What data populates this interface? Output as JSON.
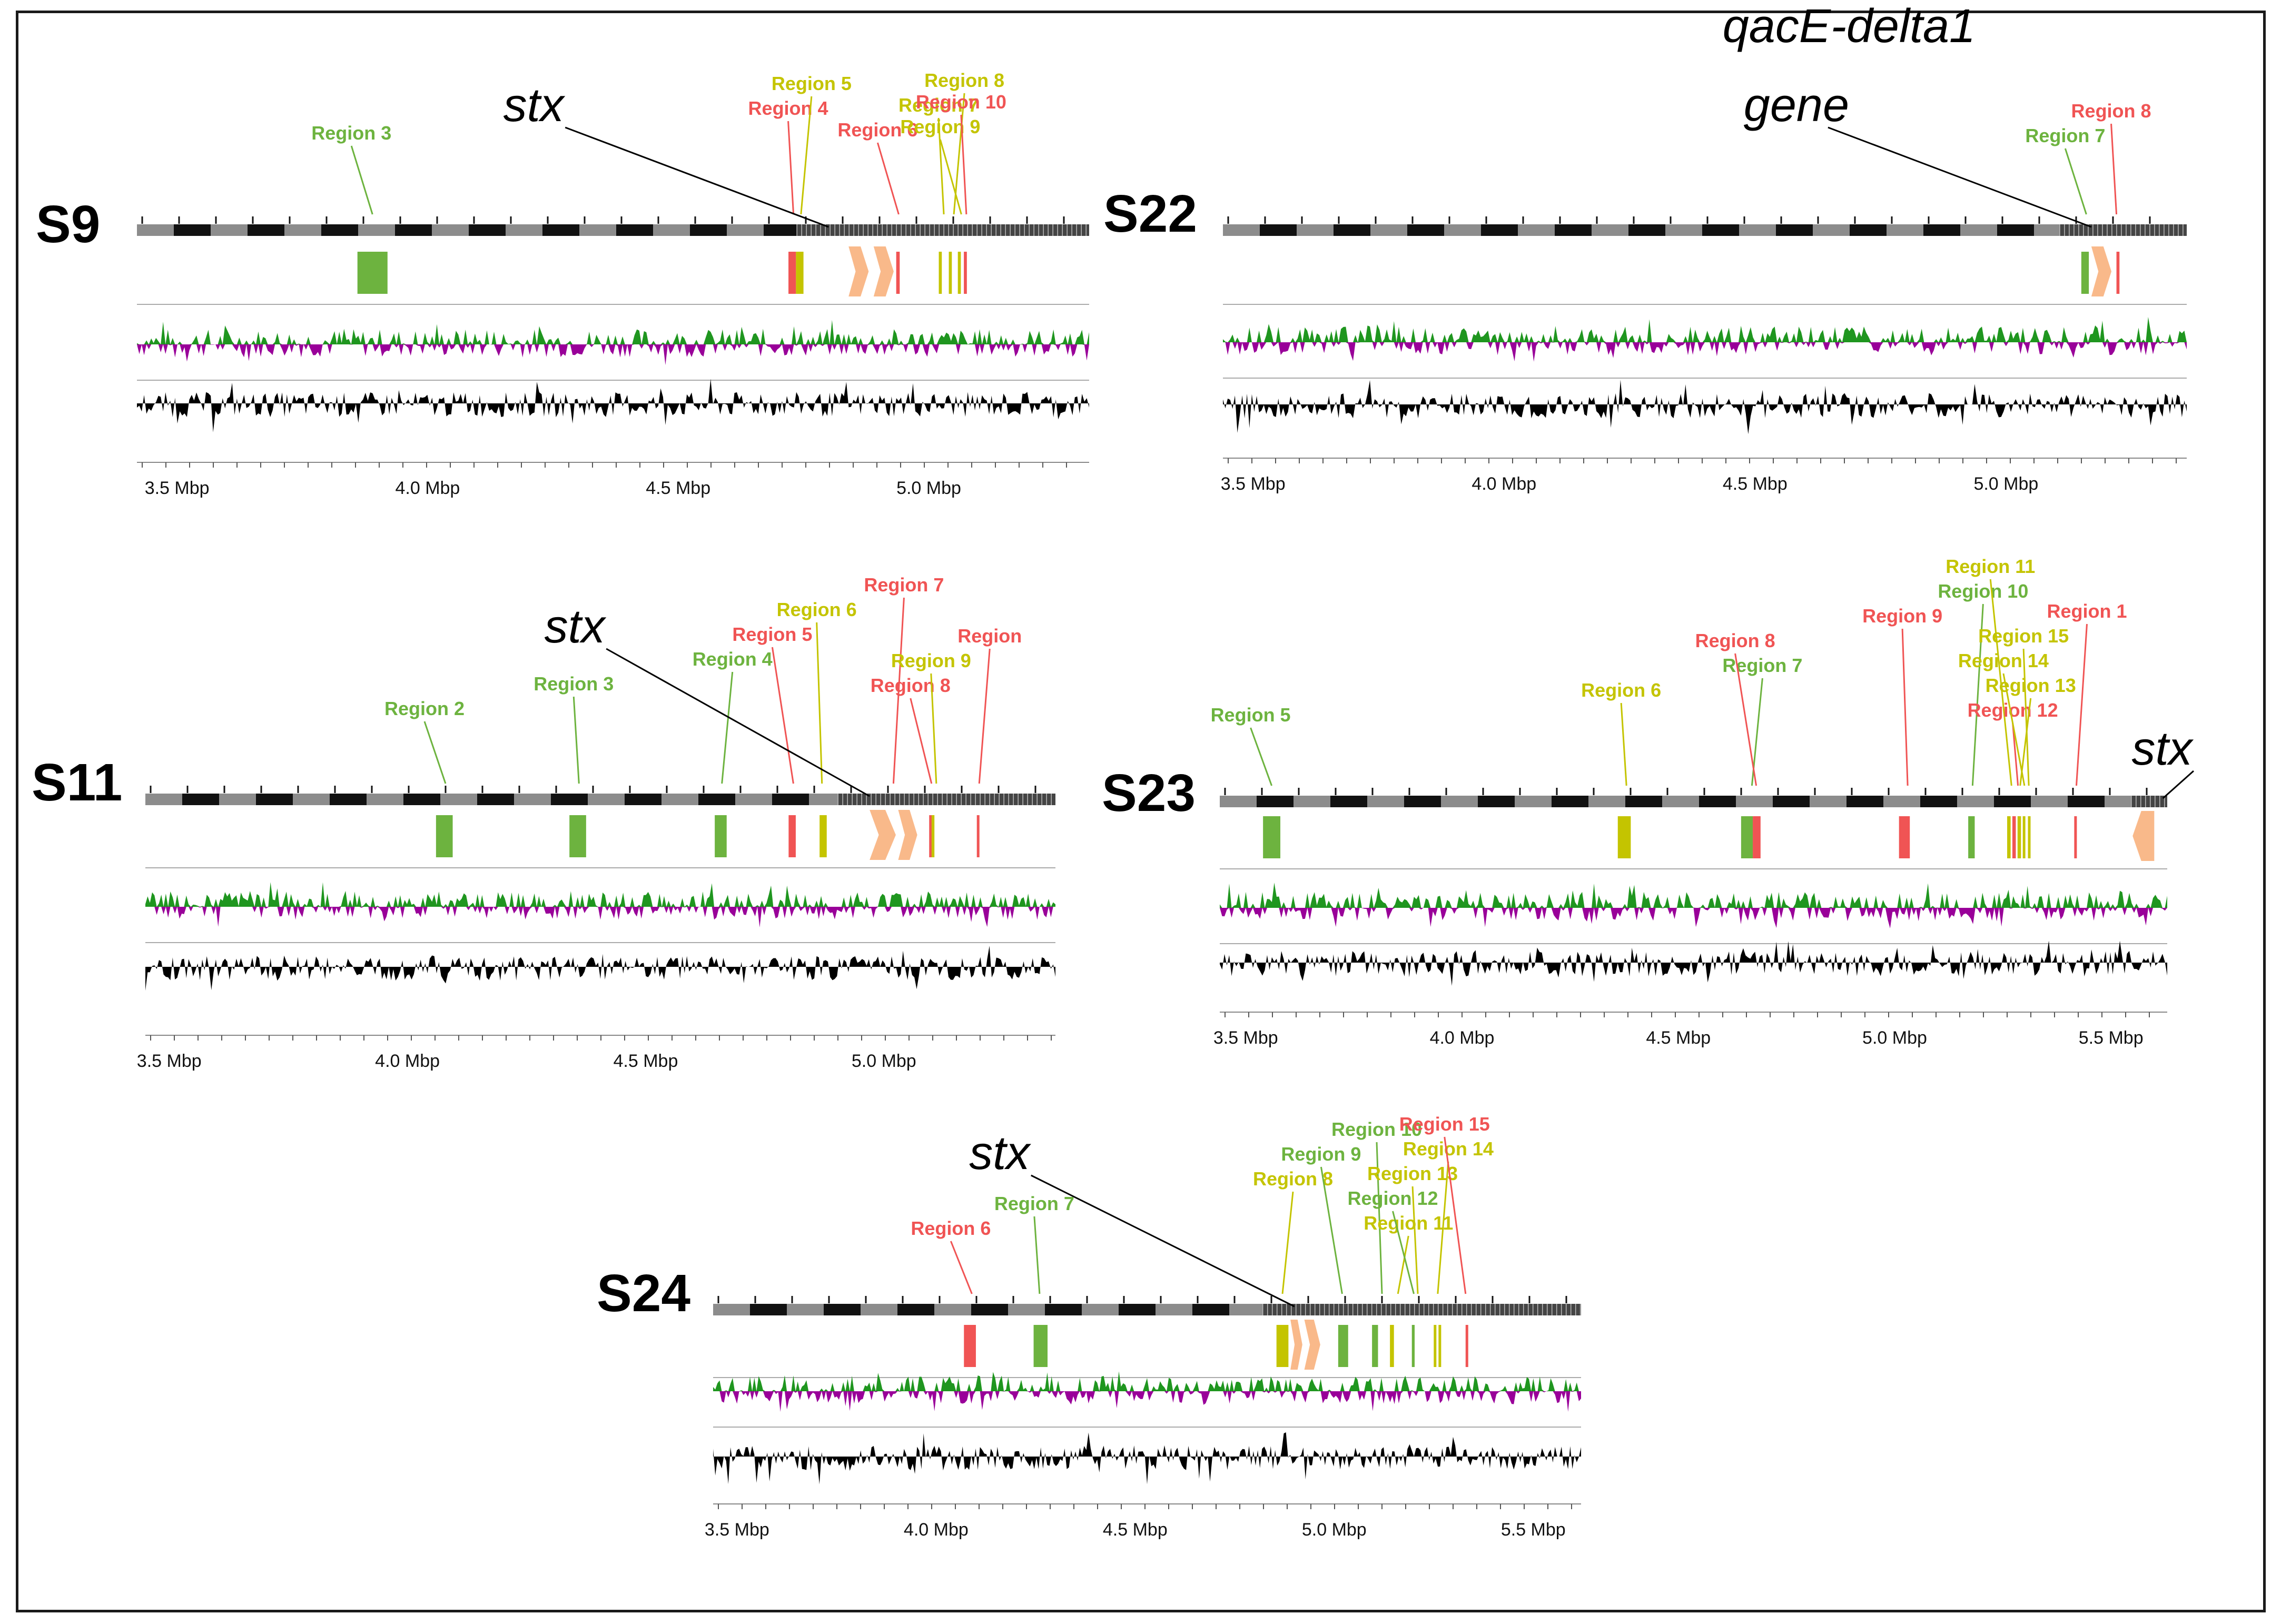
{
  "colors": {
    "green": "#6db33f",
    "yellow": "#c4c400",
    "red": "#f05454",
    "orange": "#f9b98a",
    "gc_pos": "#1f961f",
    "gc_neg": "#990099",
    "skew": "#000000",
    "ideo_dark": "#111111",
    "ideo_light": "#8c8c8c",
    "axis": "#666666"
  },
  "panels": [
    {
      "id": "S9",
      "title": "S9",
      "axis_labels": [
        "3.5 Mbp",
        "4.0 Mbp",
        "4.5 Mbp",
        "5.0 Mbp"
      ],
      "axis_ticks_mbp": [
        3.5,
        4.0,
        4.5,
        5.0
      ],
      "range_mbp": [
        3.42,
        5.32
      ],
      "callouts": [
        {
          "text": "stx",
          "pos_mbp": 4.8,
          "italic": true
        },
        {
          "text": "Region 3",
          "pos_mbp": 3.89,
          "color": "green"
        },
        {
          "text": "Region 4",
          "pos_mbp": 4.73,
          "color": "red"
        },
        {
          "text": "Region 5",
          "pos_mbp": 4.745,
          "color": "yellow"
        },
        {
          "text": "Region 6",
          "pos_mbp": 4.94,
          "color": "red"
        },
        {
          "text": "Region 7",
          "pos_mbp": 5.03,
          "color": "yellow"
        },
        {
          "text": "Region 8",
          "pos_mbp": 5.05,
          "color": "yellow"
        },
        {
          "text": "Region 9",
          "pos_mbp": 5.065,
          "color": "yellow"
        },
        {
          "text": "Region 10",
          "pos_mbp": 5.075,
          "color": "red"
        }
      ],
      "features": [
        {
          "color": "green",
          "start_mbp": 3.86,
          "end_mbp": 3.92
        },
        {
          "color": "red",
          "start_mbp": 4.72,
          "end_mbp": 4.735
        },
        {
          "color": "yellow",
          "start_mbp": 4.735,
          "end_mbp": 4.75
        },
        {
          "color": "orange",
          "start_mbp": 4.84,
          "end_mbp": 4.88,
          "shape": "arrow-right"
        },
        {
          "color": "orange",
          "start_mbp": 4.89,
          "end_mbp": 4.93,
          "shape": "arrow-right"
        },
        {
          "color": "red",
          "start_mbp": 4.935,
          "end_mbp": 4.942
        },
        {
          "color": "yellow",
          "start_mbp": 5.02,
          "end_mbp": 5.026
        },
        {
          "color": "yellow",
          "start_mbp": 5.04,
          "end_mbp": 5.046
        },
        {
          "color": "yellow",
          "start_mbp": 5.058,
          "end_mbp": 5.064
        },
        {
          "color": "red",
          "start_mbp": 5.07,
          "end_mbp": 5.076
        }
      ]
    },
    {
      "id": "S22",
      "title": "S22",
      "axis_labels": [
        "3.5 Mbp",
        "4.0 Mbp",
        "4.5 Mbp",
        "5.0 Mbp"
      ],
      "axis_ticks_mbp": [
        3.5,
        4.0,
        4.5,
        5.0
      ],
      "range_mbp": [
        3.44,
        5.36
      ],
      "callouts": [
        {
          "text": "qacE-delta1",
          "pos_mbp": 5.17,
          "italic": true,
          "line2": "gene"
        },
        {
          "text": "Region 7",
          "pos_mbp": 5.16,
          "color": "green"
        },
        {
          "text": "Region 8",
          "pos_mbp": 5.22,
          "color": "red"
        }
      ],
      "features": [
        {
          "color": "green",
          "start_mbp": 5.15,
          "end_mbp": 5.165
        },
        {
          "color": "orange",
          "start_mbp": 5.17,
          "end_mbp": 5.21,
          "shape": "arrow-right"
        },
        {
          "color": "red",
          "start_mbp": 5.22,
          "end_mbp": 5.226
        }
      ]
    },
    {
      "id": "S11",
      "title": "S11",
      "axis_labels": [
        "3.5 Mbp",
        "4.0 Mbp",
        "4.5 Mbp",
        "5.0 Mbp"
      ],
      "axis_ticks_mbp": [
        3.5,
        4.0,
        4.5,
        5.0
      ],
      "range_mbp": [
        3.45,
        5.36
      ],
      "callouts": [
        {
          "text": "stx",
          "pos_mbp": 4.97,
          "italic": true
        },
        {
          "text": "Region 2",
          "pos_mbp": 4.08,
          "color": "green"
        },
        {
          "text": "Region 3",
          "pos_mbp": 4.36,
          "color": "green"
        },
        {
          "text": "Region 4",
          "pos_mbp": 4.66,
          "color": "green"
        },
        {
          "text": "Region 5",
          "pos_mbp": 4.81,
          "color": "red"
        },
        {
          "text": "Region 6",
          "pos_mbp": 4.87,
          "color": "yellow"
        },
        {
          "text": "Region 7",
          "pos_mbp": 5.02,
          "color": "red"
        },
        {
          "text": "Region 8",
          "pos_mbp": 5.1,
          "color": "red"
        },
        {
          "text": "Region 9",
          "pos_mbp": 5.11,
          "color": "yellow"
        },
        {
          "text": "Region",
          "pos_mbp": 5.2,
          "color": "red"
        }
      ],
      "features": [
        {
          "color": "green",
          "start_mbp": 4.06,
          "end_mbp": 4.095
        },
        {
          "color": "green",
          "start_mbp": 4.34,
          "end_mbp": 4.375
        },
        {
          "color": "green",
          "start_mbp": 4.645,
          "end_mbp": 4.67
        },
        {
          "color": "red",
          "start_mbp": 4.8,
          "end_mbp": 4.815
        },
        {
          "color": "yellow",
          "start_mbp": 4.865,
          "end_mbp": 4.88
        },
        {
          "color": "orange",
          "start_mbp": 4.97,
          "end_mbp": 5.025,
          "shape": "arrow-right"
        },
        {
          "color": "orange",
          "start_mbp": 5.03,
          "end_mbp": 5.07,
          "shape": "arrow-right"
        },
        {
          "color": "red",
          "start_mbp": 5.095,
          "end_mbp": 5.1
        },
        {
          "color": "yellow",
          "start_mbp": 5.1,
          "end_mbp": 5.106
        },
        {
          "color": "red",
          "start_mbp": 5.195,
          "end_mbp": 5.2
        }
      ]
    },
    {
      "id": "S23",
      "title": "S23",
      "axis_labels": [
        "3.5 Mbp",
        "4.0 Mbp",
        "4.5 Mbp",
        "5.0 Mbp",
        "5.5 Mbp"
      ],
      "axis_ticks_mbp": [
        3.5,
        4.0,
        4.5,
        5.0,
        5.5
      ],
      "range_mbp": [
        3.44,
        5.63
      ],
      "callouts": [
        {
          "text": "stx",
          "pos_mbp": 5.62,
          "italic": true
        },
        {
          "text": "Region 5",
          "pos_mbp": 3.56,
          "color": "green"
        },
        {
          "text": "Region 6",
          "pos_mbp": 4.38,
          "color": "yellow"
        },
        {
          "text": "Region 7",
          "pos_mbp": 4.67,
          "color": "green"
        },
        {
          "text": "Region 8",
          "pos_mbp": 4.68,
          "color": "red"
        },
        {
          "text": "Region 9",
          "pos_mbp": 5.03,
          "color": "red"
        },
        {
          "text": "Region 10",
          "pos_mbp": 5.18,
          "color": "green"
        },
        {
          "text": "Region 11",
          "pos_mbp": 5.27,
          "color": "yellow"
        },
        {
          "text": "Region 12",
          "pos_mbp": 5.285,
          "color": "red"
        },
        {
          "text": "Region 13",
          "pos_mbp": 5.29,
          "color": "yellow"
        },
        {
          "text": "Region 14",
          "pos_mbp": 5.3,
          "color": "yellow"
        },
        {
          "text": "Region 15",
          "pos_mbp": 5.31,
          "color": "yellow"
        },
        {
          "text": "Region 1",
          "pos_mbp": 5.42,
          "color": "red"
        }
      ],
      "features": [
        {
          "color": "green",
          "start_mbp": 3.54,
          "end_mbp": 3.58
        },
        {
          "color": "yellow",
          "start_mbp": 4.36,
          "end_mbp": 4.39
        },
        {
          "color": "green",
          "start_mbp": 4.645,
          "end_mbp": 4.672
        },
        {
          "color": "red",
          "start_mbp": 4.672,
          "end_mbp": 4.69
        },
        {
          "color": "red",
          "start_mbp": 5.01,
          "end_mbp": 5.035
        },
        {
          "color": "green",
          "start_mbp": 5.17,
          "end_mbp": 5.185
        },
        {
          "color": "yellow",
          "start_mbp": 5.26,
          "end_mbp": 5.268
        },
        {
          "color": "red",
          "start_mbp": 5.272,
          "end_mbp": 5.28
        },
        {
          "color": "yellow",
          "start_mbp": 5.284,
          "end_mbp": 5.292
        },
        {
          "color": "yellow",
          "start_mbp": 5.296,
          "end_mbp": 5.302
        },
        {
          "color": "yellow",
          "start_mbp": 5.308,
          "end_mbp": 5.314
        },
        {
          "color": "red",
          "start_mbp": 5.415,
          "end_mbp": 5.421
        },
        {
          "color": "orange",
          "start_mbp": 5.55,
          "end_mbp": 5.6,
          "shape": "arrow-left"
        }
      ]
    },
    {
      "id": "S24",
      "title": "S24",
      "axis_labels": [
        "3.5 Mbp",
        "4.0 Mbp",
        "4.5 Mbp",
        "5.0 Mbp",
        "5.5 Mbp"
      ],
      "axis_ticks_mbp": [
        3.5,
        4.0,
        4.5,
        5.0,
        5.5
      ],
      "range_mbp": [
        3.44,
        5.62
      ],
      "callouts": [
        {
          "text": "stx",
          "pos_mbp": 4.9,
          "italic": true
        },
        {
          "text": "Region 6",
          "pos_mbp": 4.09,
          "color": "red"
        },
        {
          "text": "Region 7",
          "pos_mbp": 4.26,
          "color": "green"
        },
        {
          "text": "Region 8",
          "pos_mbp": 4.87,
          "color": "yellow"
        },
        {
          "text": "Region 9",
          "pos_mbp": 5.02,
          "color": "green"
        },
        {
          "text": "Region 10",
          "pos_mbp": 5.12,
          "color": "green"
        },
        {
          "text": "Region 11",
          "pos_mbp": 5.16,
          "color": "yellow"
        },
        {
          "text": "Region 12",
          "pos_mbp": 5.2,
          "color": "green"
        },
        {
          "text": "Region 13",
          "pos_mbp": 5.21,
          "color": "yellow"
        },
        {
          "text": "Region 14",
          "pos_mbp": 5.26,
          "color": "yellow"
        },
        {
          "text": "Region 15",
          "pos_mbp": 5.33,
          "color": "red"
        }
      ],
      "features": [
        {
          "color": "red",
          "start_mbp": 4.07,
          "end_mbp": 4.1
        },
        {
          "color": "green",
          "start_mbp": 4.245,
          "end_mbp": 4.28
        },
        {
          "color": "yellow",
          "start_mbp": 4.855,
          "end_mbp": 4.885
        },
        {
          "color": "orange",
          "start_mbp": 4.89,
          "end_mbp": 4.92,
          "shape": "arrow-right"
        },
        {
          "color": "orange",
          "start_mbp": 4.925,
          "end_mbp": 4.965,
          "shape": "arrow-right"
        },
        {
          "color": "green",
          "start_mbp": 5.01,
          "end_mbp": 5.035
        },
        {
          "color": "green",
          "start_mbp": 5.095,
          "end_mbp": 5.11
        },
        {
          "color": "yellow",
          "start_mbp": 5.14,
          "end_mbp": 5.15
        },
        {
          "color": "green",
          "start_mbp": 5.195,
          "end_mbp": 5.202
        },
        {
          "color": "yellow",
          "start_mbp": 5.25,
          "end_mbp": 5.256
        },
        {
          "color": "yellow",
          "start_mbp": 5.262,
          "end_mbp": 5.268
        },
        {
          "color": "red",
          "start_mbp": 5.33,
          "end_mbp": 5.336
        }
      ]
    }
  ]
}
